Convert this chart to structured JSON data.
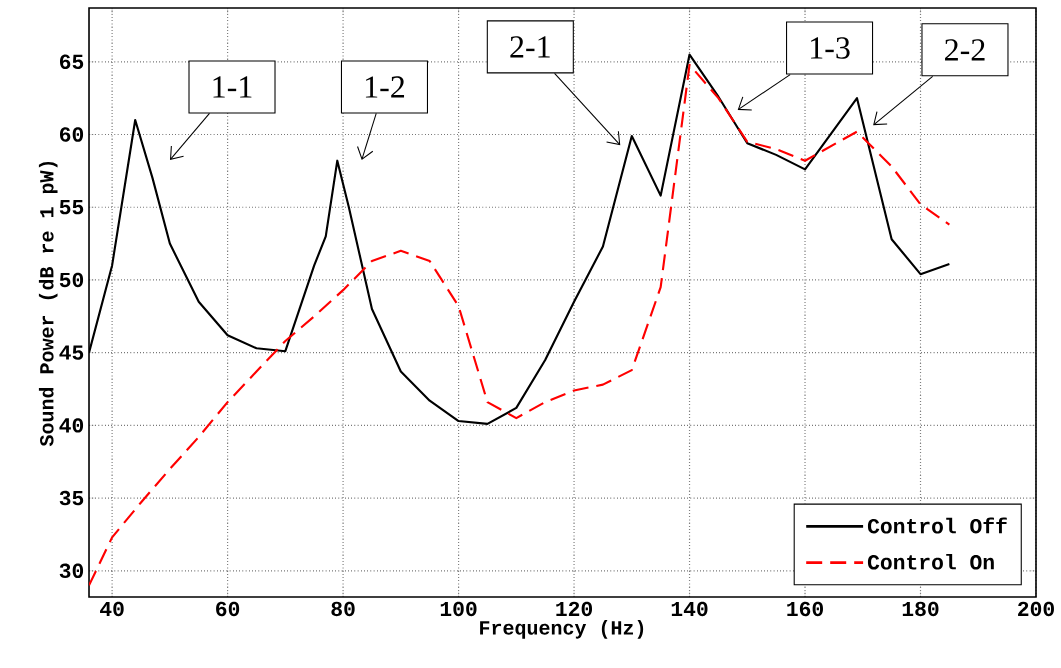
{
  "chart_data": {
    "type": "line",
    "xlabel": "Frequency (Hz)",
    "ylabel": "Sound Power (dB re 1 pW)",
    "xlim": [
      36,
      200
    ],
    "ylim": [
      28.2,
      68.7
    ],
    "xticks": [
      40,
      60,
      80,
      100,
      120,
      140,
      160,
      180,
      200
    ],
    "yticks": [
      30,
      35,
      40,
      45,
      50,
      55,
      60,
      65
    ],
    "grid": true,
    "legend": "bottom right",
    "series": [
      {
        "name": "Control Off",
        "color": "#000000",
        "line_style": "solid",
        "x": [
          36,
          40,
          44,
          47,
          50,
          55,
          60,
          65,
          70,
          75,
          77,
          79,
          81,
          85,
          90,
          95,
          100,
          105,
          110,
          115,
          120,
          125,
          130,
          135,
          140,
          145,
          150,
          155,
          160,
          169,
          175,
          180,
          185
        ],
        "values": [
          45,
          51,
          61,
          57,
          52.5,
          48.5,
          46.2,
          45.3,
          45.1,
          51,
          53,
          58.2,
          55,
          48,
          43.7,
          41.7,
          40.3,
          40.1,
          41.2,
          44.5,
          48.5,
          52.3,
          59.9,
          55.8,
          65.5,
          62.6,
          59.4,
          58.6,
          57.6,
          62.5,
          52.8,
          50.4,
          51.1
        ]
      },
      {
        "name": "Control On",
        "color": "#ff0000",
        "line_style": "dashed",
        "x": [
          36,
          40,
          45,
          50,
          55,
          60,
          65,
          70,
          75,
          80,
          85,
          90,
          95,
          100,
          105,
          110,
          115,
          120,
          125,
          130,
          135,
          140,
          145,
          150,
          155,
          160,
          169,
          175,
          180,
          185
        ],
        "values": [
          29,
          32.3,
          34.7,
          37,
          39.2,
          41.6,
          43.7,
          45.8,
          47.5,
          49.3,
          51.3,
          52,
          51.3,
          48.2,
          41.6,
          40.5,
          41.6,
          42.4,
          42.8,
          43.8,
          49.5,
          64.8,
          62.5,
          59.5,
          59,
          58.2,
          60.2,
          57.8,
          55.2,
          53.8
        ]
      }
    ],
    "annotations": [
      "1-1",
      "1-2",
      "2-1",
      "1-3",
      "2-2"
    ]
  }
}
